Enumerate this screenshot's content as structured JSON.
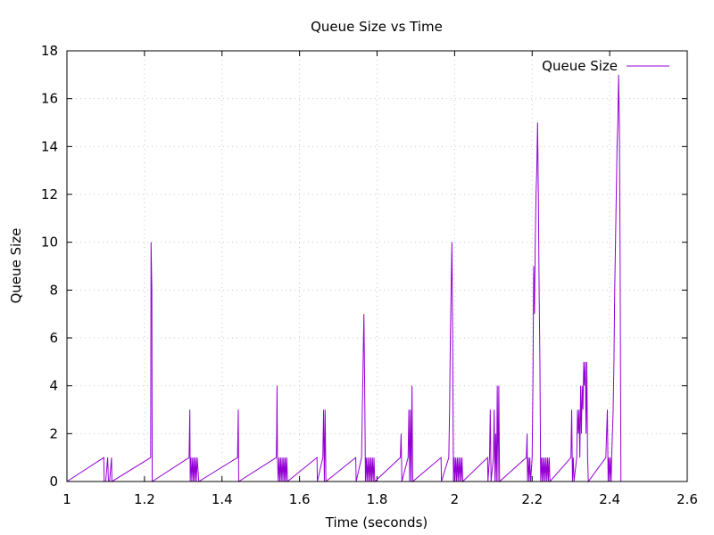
{
  "chart_data": {
    "type": "line",
    "title": "Queue Size vs Time",
    "xlabel": "Time (seconds)",
    "ylabel": "Queue Size",
    "xlim": [
      1,
      2.6
    ],
    "ylim": [
      0,
      18
    ],
    "x_ticks": [
      1,
      1.2,
      1.4,
      1.6,
      1.8,
      2,
      2.2,
      2.4,
      2.6
    ],
    "y_ticks": [
      0,
      2,
      4,
      6,
      8,
      10,
      12,
      14,
      16,
      18
    ],
    "x_tick_labels": [
      "1",
      "1.2",
      "1.4",
      "1.6",
      "1.8",
      "2",
      "2.2",
      "2.4",
      "2.6"
    ],
    "y_tick_labels": [
      "0",
      "2",
      "4",
      "6",
      "8",
      "10",
      "12",
      "14",
      "16",
      "18"
    ],
    "grid": true,
    "legend_position": "top-right",
    "series": [
      {
        "name": "Queue Size",
        "color": "#9400D3",
        "points": [
          [
            1.0,
            0
          ],
          [
            1.095,
            1
          ],
          [
            1.096,
            0
          ],
          [
            1.1,
            0
          ],
          [
            1.105,
            1
          ],
          [
            1.107,
            0
          ],
          [
            1.11,
            0
          ],
          [
            1.115,
            1
          ],
          [
            1.116,
            0
          ],
          [
            1.216,
            1
          ],
          [
            1.217,
            10
          ],
          [
            1.219,
            8
          ],
          [
            1.22,
            0
          ],
          [
            1.315,
            1
          ],
          [
            1.317,
            3
          ],
          [
            1.318,
            0
          ],
          [
            1.32,
            1
          ],
          [
            1.322,
            0
          ],
          [
            1.324,
            1
          ],
          [
            1.326,
            0
          ],
          [
            1.328,
            1
          ],
          [
            1.33,
            0
          ],
          [
            1.332,
            1
          ],
          [
            1.334,
            0
          ],
          [
            1.336,
            1
          ],
          [
            1.34,
            0
          ],
          [
            1.44,
            1
          ],
          [
            1.441,
            2
          ],
          [
            1.442,
            3
          ],
          [
            1.443,
            0
          ],
          [
            1.54,
            1
          ],
          [
            1.541,
            2
          ],
          [
            1.542,
            4
          ],
          [
            1.543,
            1
          ],
          [
            1.545,
            0
          ],
          [
            1.547,
            1
          ],
          [
            1.549,
            0
          ],
          [
            1.551,
            1
          ],
          [
            1.553,
            0
          ],
          [
            1.555,
            1
          ],
          [
            1.557,
            0
          ],
          [
            1.559,
            1
          ],
          [
            1.561,
            0
          ],
          [
            1.563,
            1
          ],
          [
            1.565,
            0
          ],
          [
            1.567,
            1
          ],
          [
            1.569,
            0
          ],
          [
            1.645,
            1
          ],
          [
            1.646,
            0
          ],
          [
            1.66,
            1
          ],
          [
            1.661,
            2
          ],
          [
            1.662,
            3
          ],
          [
            1.664,
            0
          ],
          [
            1.666,
            3
          ],
          [
            1.668,
            0
          ],
          [
            1.745,
            1
          ],
          [
            1.746,
            0
          ],
          [
            1.76,
            1
          ],
          [
            1.762,
            3
          ],
          [
            1.764,
            5
          ],
          [
            1.766,
            7
          ],
          [
            1.768,
            4
          ],
          [
            1.77,
            0
          ],
          [
            1.772,
            1
          ],
          [
            1.774,
            0
          ],
          [
            1.776,
            1
          ],
          [
            1.778,
            0
          ],
          [
            1.78,
            1
          ],
          [
            1.782,
            0
          ],
          [
            1.784,
            1
          ],
          [
            1.786,
            0
          ],
          [
            1.788,
            1
          ],
          [
            1.79,
            0
          ],
          [
            1.792,
            1
          ],
          [
            1.794,
            0
          ],
          [
            1.86,
            1
          ],
          [
            1.862,
            2
          ],
          [
            1.864,
            0
          ],
          [
            1.88,
            1
          ],
          [
            1.882,
            3
          ],
          [
            1.884,
            0
          ],
          [
            1.886,
            3
          ],
          [
            1.888,
            0
          ],
          [
            1.89,
            4
          ],
          [
            1.892,
            0
          ],
          [
            1.965,
            1
          ],
          [
            1.966,
            0
          ],
          [
            1.985,
            1
          ],
          [
            1.987,
            3
          ],
          [
            1.989,
            6
          ],
          [
            1.991,
            8
          ],
          [
            1.993,
            10
          ],
          [
            1.995,
            6
          ],
          [
            1.997,
            0
          ],
          [
            1.999,
            1
          ],
          [
            2.001,
            0
          ],
          [
            2.003,
            1
          ],
          [
            2.005,
            0
          ],
          [
            2.007,
            1
          ],
          [
            2.009,
            0
          ],
          [
            2.011,
            1
          ],
          [
            2.013,
            0
          ],
          [
            2.015,
            1
          ],
          [
            2.017,
            0
          ],
          [
            2.019,
            1
          ],
          [
            2.021,
            0
          ],
          [
            2.085,
            1
          ],
          [
            2.086,
            0
          ],
          [
            2.09,
            1
          ],
          [
            2.092,
            3
          ],
          [
            2.094,
            0
          ],
          [
            2.1,
            1
          ],
          [
            2.102,
            3
          ],
          [
            2.104,
            0
          ],
          [
            2.106,
            2
          ],
          [
            2.108,
            0
          ],
          [
            2.11,
            4
          ],
          [
            2.112,
            0
          ],
          [
            2.114,
            4
          ],
          [
            2.116,
            0
          ],
          [
            2.185,
            1
          ],
          [
            2.187,
            2
          ],
          [
            2.188,
            0
          ],
          [
            2.19,
            1
          ],
          [
            2.192,
            0
          ],
          [
            2.194,
            1
          ],
          [
            2.196,
            0
          ],
          [
            2.2,
            1
          ],
          [
            2.202,
            4
          ],
          [
            2.204,
            9
          ],
          [
            2.206,
            7
          ],
          [
            2.208,
            10
          ],
          [
            2.21,
            12
          ],
          [
            2.212,
            13
          ],
          [
            2.214,
            15
          ],
          [
            2.216,
            12
          ],
          [
            2.218,
            8
          ],
          [
            2.22,
            5
          ],
          [
            2.222,
            0
          ],
          [
            2.224,
            1
          ],
          [
            2.226,
            0
          ],
          [
            2.228,
            1
          ],
          [
            2.23,
            0
          ],
          [
            2.232,
            1
          ],
          [
            2.234,
            0
          ],
          [
            2.236,
            1
          ],
          [
            2.238,
            0
          ],
          [
            2.24,
            1
          ],
          [
            2.242,
            0
          ],
          [
            2.244,
            1
          ],
          [
            2.246,
            0
          ],
          [
            2.3,
            1
          ],
          [
            2.302,
            3
          ],
          [
            2.304,
            0
          ],
          [
            2.306,
            1
          ],
          [
            2.308,
            0
          ],
          [
            2.315,
            1
          ],
          [
            2.317,
            3
          ],
          [
            2.319,
            2
          ],
          [
            2.321,
            3
          ],
          [
            2.323,
            1
          ],
          [
            2.325,
            4
          ],
          [
            2.327,
            2
          ],
          [
            2.329,
            4
          ],
          [
            2.331,
            3
          ],
          [
            2.333,
            5
          ],
          [
            2.335,
            4
          ],
          [
            2.337,
            5
          ],
          [
            2.339,
            2
          ],
          [
            2.341,
            5
          ],
          [
            2.343,
            1
          ],
          [
            2.345,
            0
          ],
          [
            2.39,
            1
          ],
          [
            2.392,
            2
          ],
          [
            2.394,
            3
          ],
          [
            2.396,
            0
          ],
          [
            2.398,
            1
          ],
          [
            2.4,
            0
          ],
          [
            2.402,
            1
          ],
          [
            2.404,
            0
          ],
          [
            2.405,
            1
          ],
          [
            2.407,
            2
          ],
          [
            2.409,
            3
          ],
          [
            2.411,
            5
          ],
          [
            2.413,
            8
          ],
          [
            2.415,
            10
          ],
          [
            2.417,
            12
          ],
          [
            2.419,
            14
          ],
          [
            2.421,
            15
          ],
          [
            2.423,
            17
          ],
          [
            2.425,
            15
          ],
          [
            2.427,
            9
          ],
          [
            2.429,
            0
          ]
        ]
      }
    ]
  }
}
